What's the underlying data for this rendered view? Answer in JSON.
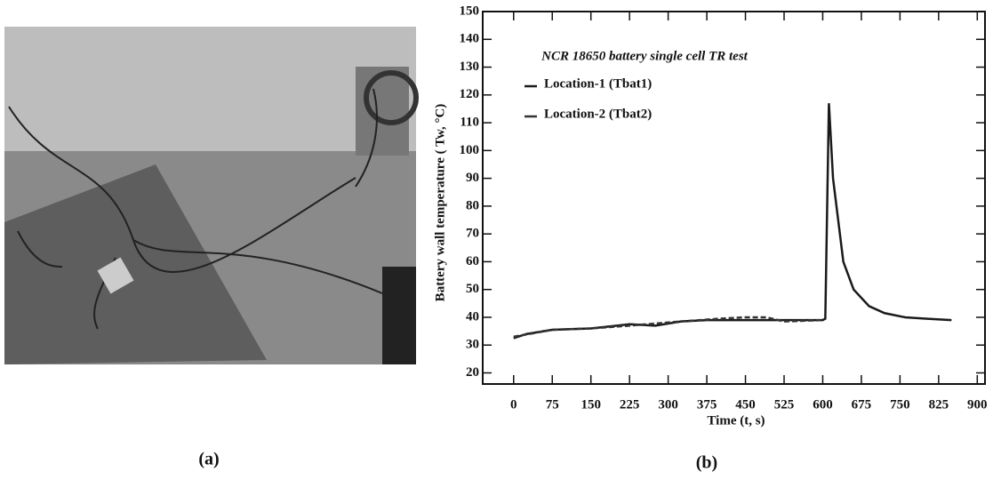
{
  "captions": [
    "(a)",
    "(b)"
  ],
  "chart_data": {
    "type": "line",
    "title": "NCR 18650 battery single cell TR test",
    "x_label": "Time (t, s)",
    "y_label": "Battery wall temperature ( Tw, °C)",
    "xlim": [
      -60,
      915
    ],
    "ylim": [
      16,
      150
    ],
    "xticks": [
      0,
      75,
      150,
      225,
      300,
      375,
      450,
      525,
      600,
      675,
      750,
      825,
      900
    ],
    "yticks": [
      20,
      30,
      40,
      50,
      60,
      70,
      80,
      90,
      100,
      110,
      120,
      130,
      140,
      150
    ],
    "grid": false,
    "legend": "upper left",
    "series": [
      {
        "name": "Location-1 (Tbat1)",
        "color": "#1a1a1a",
        "dash": false,
        "x": [
          0,
          25,
          75,
          150,
          200,
          225,
          275,
          325,
          375,
          450,
          525,
          600,
          605,
          612,
          620,
          640,
          660,
          690,
          720,
          760,
          800,
          850
        ],
        "values": [
          32.5,
          34,
          35.5,
          36,
          37,
          37.5,
          37,
          38.5,
          39,
          39,
          39,
          39,
          39.5,
          117,
          90,
          60,
          50,
          44,
          41.5,
          40,
          39.5,
          39
        ]
      },
      {
        "name": "Location-2 (Tbat2)",
        "color": "#333333",
        "dash": true,
        "x": [
          0,
          75,
          150,
          225,
          325,
          400,
          450,
          490,
          525,
          600
        ],
        "values": [
          33,
          35.5,
          36,
          37,
          38.5,
          39.5,
          40,
          40,
          38.5,
          39
        ]
      }
    ]
  }
}
